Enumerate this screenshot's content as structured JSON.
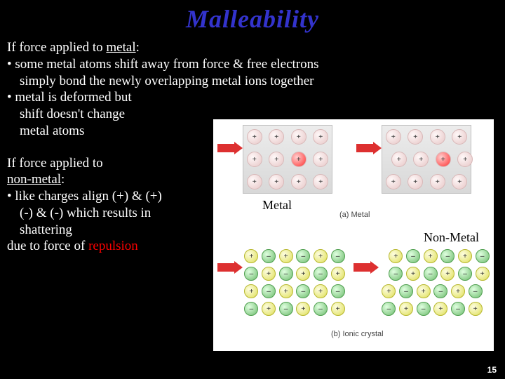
{
  "title": "Malleability",
  "text": {
    "p1_intro": "If force applied to ",
    "p1_metal": "metal",
    "p1_colon": ":",
    "b1": "• some metal atoms shift away from force &  free electrons",
    "b1_cont": "simply bond the newly overlapping metal ions together",
    "b2": "• metal is deformed but",
    "b2_l2": "shift doesn't change",
    "b2_l3": "metal atoms",
    "p2_intro": "If force applied to",
    "p2_nonmetal": "non-metal",
    "p2_colon": ":",
    "b3": "• like charges align (+) & (+)",
    "b3_l2": "(-) & (-) which results in",
    "b3_l3": "shattering",
    "b4_pre": "due to force of ",
    "b4_rep": "repulsion"
  },
  "labels": {
    "metal": "Metal",
    "nonmetal": "Non-Metal",
    "cap_a": "(a) Metal",
    "cap_b": "(b) Ionic crystal"
  },
  "colors": {
    "bg": "#000000",
    "title": "#3333cc",
    "highlight": "#ff0000",
    "figure_bg": "#ffffff",
    "metal_ion": "#f0dada",
    "metal_hl": "#ff6060",
    "cation": "#e8e880",
    "anion": "#90d090",
    "arrow": "#dd3030"
  },
  "figure": {
    "metal": {
      "type": "grid-diagram",
      "rows": 3,
      "cols": 4,
      "sign": "+",
      "highlight_row": 1,
      "highlight_col": 2
    },
    "ionic": {
      "type": "grid-diagram",
      "rows": 4,
      "cols": 6,
      "pattern": "alternating",
      "signs": [
        "+",
        "–"
      ]
    }
  },
  "page_number": "15"
}
